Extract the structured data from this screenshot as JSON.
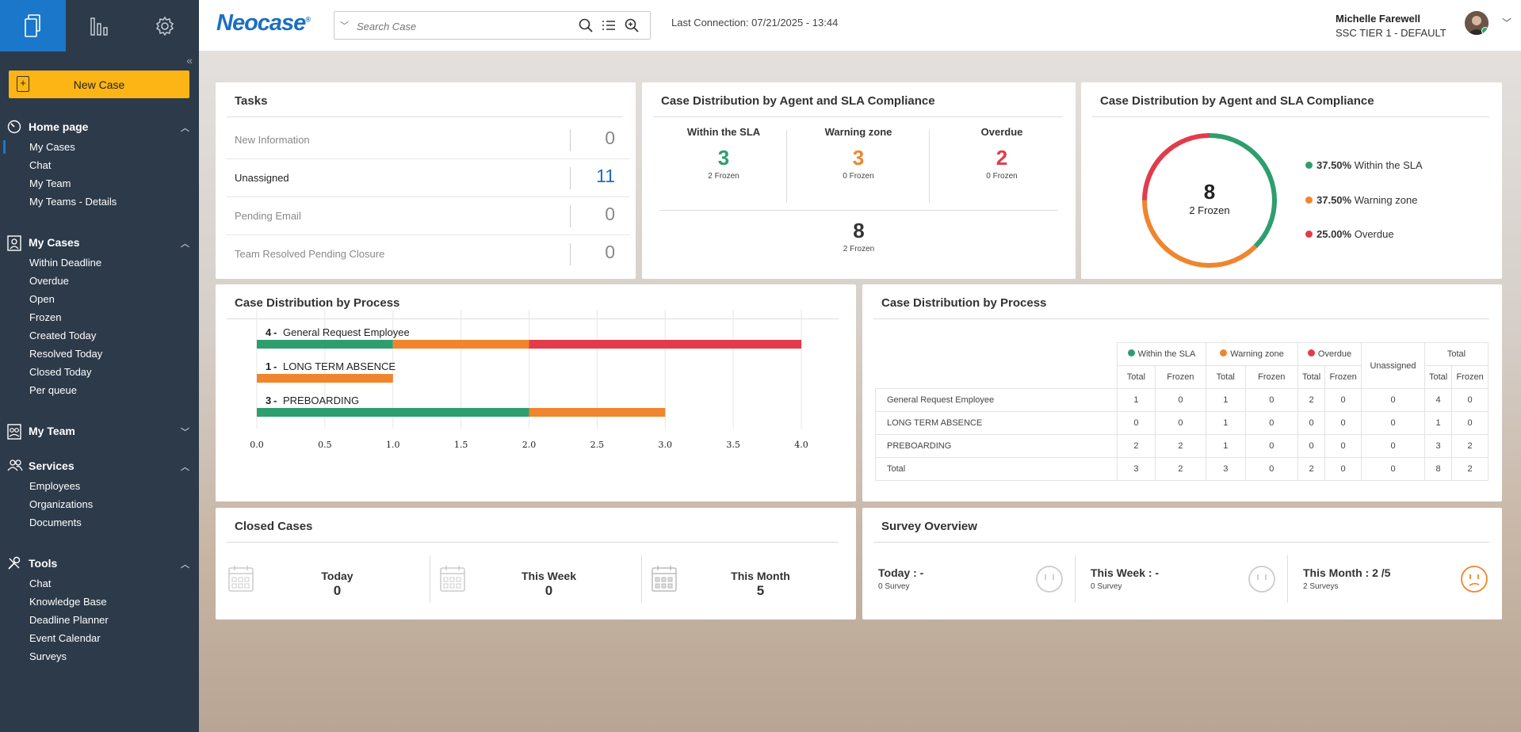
{
  "app": {
    "logo": "Neocase",
    "logo_mark": "®"
  },
  "topbar": {
    "search_placeholder": "Search Case",
    "last_connection": "Last Connection:  07/21/2025 - 13:44",
    "user_name": "Michelle Farewell",
    "user_role": "SSC TIER 1 - DEFAULT"
  },
  "sidebar": {
    "new_case": "New Case",
    "sections": [
      {
        "title": "Home page",
        "items": [
          "My Cases",
          "Chat",
          "My Team",
          "My Teams - Details"
        ]
      },
      {
        "title": "My Cases",
        "items": [
          "Within Deadline",
          "Overdue",
          "Open",
          "Frozen",
          "Created Today",
          "Resolved Today",
          "Closed Today",
          "Per queue"
        ]
      },
      {
        "title": "My Team",
        "items": []
      },
      {
        "title": "Services",
        "items": [
          "Employees",
          "Organizations",
          "Documents"
        ]
      },
      {
        "title": "Tools",
        "items": [
          "Chat",
          "Knowledge Base",
          "Deadline Planner",
          "Event Calendar",
          "Surveys"
        ]
      }
    ]
  },
  "tasks": {
    "title": "Tasks",
    "rows": [
      {
        "label": "New Information",
        "value": "0"
      },
      {
        "label": "Unassigned",
        "value": "11"
      },
      {
        "label": "Pending Email",
        "value": "0"
      },
      {
        "label": "Team Resolved Pending Closure",
        "value": "0"
      }
    ]
  },
  "sla": {
    "title": "Case Distribution by Agent and SLA Compliance",
    "cols": [
      {
        "title": "Within the SLA",
        "value": "3",
        "frozen": "2 Frozen",
        "color": "#2e9e6e"
      },
      {
        "title": "Warning zone",
        "value": "3",
        "frozen": "0 Frozen",
        "color": "#f0852d"
      },
      {
        "title": "Overdue",
        "value": "2",
        "frozen": "0 Frozen",
        "color": "#e23b4a"
      }
    ],
    "total": "8",
    "total_frozen": "2 Frozen"
  },
  "donut": {
    "title": "Case Distribution by Agent and SLA Compliance",
    "center_value": "8",
    "center_label": "2 Frozen",
    "legend": [
      {
        "pct": "37.50%",
        "label": "Within the SLA",
        "color": "#2e9e6e",
        "value": 37.5
      },
      {
        "pct": "37.50%",
        "label": "Warning zone",
        "color": "#f0852d",
        "value": 37.5
      },
      {
        "pct": "25.00%",
        "label": "Overdue",
        "color": "#e23b4a",
        "value": 25
      }
    ]
  },
  "process_chart": {
    "title": "Case Distribution by Process"
  },
  "chart_data": {
    "type": "bar",
    "orientation": "horizontal",
    "stacked": true,
    "categories": [
      {
        "count": "4",
        "name": "General Request Employee"
      },
      {
        "count": "1",
        "name": "LONG TERM ABSENCE"
      },
      {
        "count": "3",
        "name": "PREBOARDING"
      }
    ],
    "series": [
      {
        "name": "Within the SLA",
        "color": "#2e9e6e",
        "values": [
          1,
          0,
          2
        ]
      },
      {
        "name": "Warning zone",
        "color": "#f0852d",
        "values": [
          1,
          1,
          1
        ]
      },
      {
        "name": "Overdue",
        "color": "#e23b4a",
        "values": [
          2,
          0,
          0
        ]
      }
    ],
    "xlim": [
      0,
      4
    ],
    "xticks": [
      "0.0",
      "0.5",
      "1.0",
      "1.5",
      "2.0",
      "2.5",
      "3.0",
      "3.5",
      "4.0"
    ]
  },
  "process_table": {
    "title": "Case Distribution by Process",
    "groups": [
      {
        "label": "Within the SLA",
        "color": "#2e9e6e"
      },
      {
        "label": "Warning zone",
        "color": "#f0852d"
      },
      {
        "label": "Overdue",
        "color": "#e23b4a"
      }
    ],
    "unassigned": "Unassigned",
    "total": "Total",
    "sub_total": "Total",
    "sub_frozen": "Frozen",
    "rows": [
      {
        "name": "General Request Employee",
        "cells": [
          "1",
          "0",
          "1",
          "0",
          "2",
          "0",
          "0",
          "4",
          "0"
        ]
      },
      {
        "name": "LONG TERM ABSENCE",
        "cells": [
          "0",
          "0",
          "1",
          "0",
          "0",
          "0",
          "0",
          "1",
          "0"
        ]
      },
      {
        "name": "PREBOARDING",
        "cells": [
          "2",
          "2",
          "1",
          "0",
          "0",
          "0",
          "0",
          "3",
          "2"
        ]
      },
      {
        "name": "Total",
        "cells": [
          "3",
          "2",
          "3",
          "0",
          "2",
          "0",
          "0",
          "8",
          "2"
        ]
      }
    ]
  },
  "closed": {
    "title": "Closed Cases",
    "items": [
      {
        "label": "Today",
        "value": "0"
      },
      {
        "label": "This Week",
        "value": "0"
      },
      {
        "label": "This Month",
        "value": "5"
      }
    ]
  },
  "survey": {
    "title": "Survey Overview",
    "items": [
      {
        "label": "Today : -",
        "sub": "0 Survey"
      },
      {
        "label": "This Week : -",
        "sub": "0 Survey"
      },
      {
        "label": "This Month : 2 /5",
        "sub": "2 Surveys"
      }
    ]
  }
}
